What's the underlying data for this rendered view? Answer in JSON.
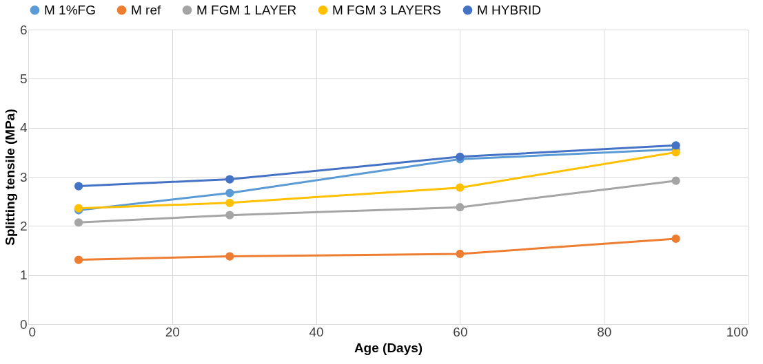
{
  "chart_data": {
    "type": "line",
    "xlabel": "Age (Days)",
    "ylabel": "Splitting tensile (MPa)",
    "x": [
      7,
      28,
      60,
      90
    ],
    "series": [
      {
        "name": "M 1%FG",
        "color": "#5b9bd5",
        "values": [
          2.32,
          2.67,
          3.36,
          3.56
        ]
      },
      {
        "name": "M ref",
        "color": "#ed7d31",
        "values": [
          1.31,
          1.38,
          1.43,
          1.74
        ]
      },
      {
        "name": "M FGM 1 LAYER",
        "color": "#a5a5a5",
        "values": [
          2.07,
          2.22,
          2.38,
          2.92
        ]
      },
      {
        "name": "M FGM 3 LAYERS",
        "color": "#ffc000",
        "values": [
          2.36,
          2.47,
          2.78,
          3.5
        ]
      },
      {
        "name": "M HYBRID",
        "color": "#4472c4",
        "values": [
          2.81,
          2.95,
          3.41,
          3.64
        ]
      }
    ],
    "xlim": [
      0,
      100
    ],
    "xticks": [
      0,
      20,
      40,
      60,
      80,
      100
    ],
    "ylim": [
      0,
      6
    ],
    "yticks": [
      0,
      1,
      2,
      3,
      4,
      5,
      6
    ],
    "grid": true,
    "legend": "top",
    "marker": "circle",
    "line_style": "solid"
  }
}
